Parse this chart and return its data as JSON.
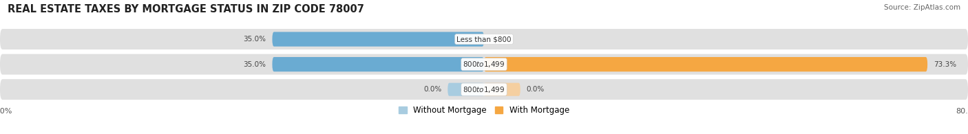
{
  "title": "REAL ESTATE TAXES BY MORTGAGE STATUS IN ZIP CODE 78007",
  "source": "Source: ZipAtlas.com",
  "rows": [
    {
      "label": "Less than $800",
      "without_mortgage": 35.0,
      "with_mortgage": 0.0,
      "with_small": false
    },
    {
      "label": "$800 to $1,499",
      "without_mortgage": 35.0,
      "with_mortgage": 73.3,
      "with_small": false
    },
    {
      "label": "$800 to $1,499",
      "without_mortgage": 0.0,
      "with_mortgage": 0.0,
      "with_small": true
    }
  ],
  "xlim_left": -80.0,
  "xlim_right": 80.0,
  "color_without": "#6aabd2",
  "color_with": "#f5a742",
  "color_without_light": "#a8cce0",
  "color_with_light": "#f5cfa0",
  "color_bg": "#e0e0e0",
  "bar_height": 0.58,
  "bg_bar_height": 0.82,
  "title_fontsize": 10.5,
  "source_fontsize": 7.5,
  "legend_fontsize": 8.5,
  "tick_fontsize": 8,
  "label_fontsize": 7.5,
  "value_fontsize": 7.5
}
